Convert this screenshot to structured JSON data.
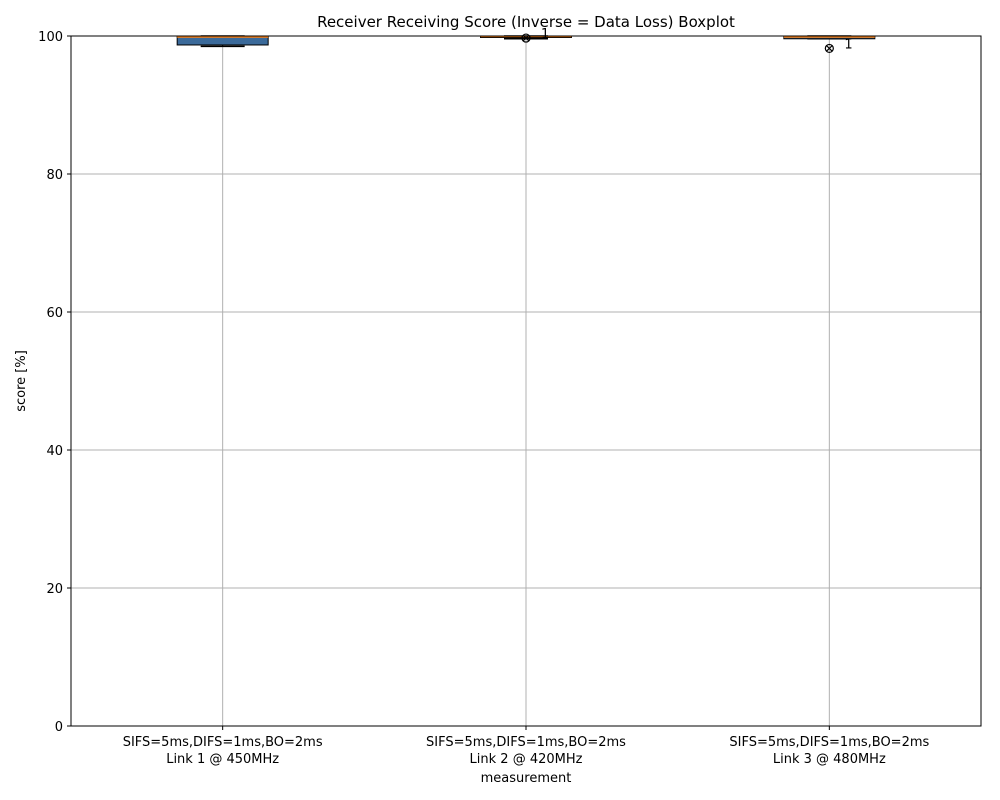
{
  "chart_data": {
    "type": "boxplot",
    "title": "Receiver Receiving Score (Inverse = Data Loss) Boxplot",
    "xlabel": "measurement",
    "ylabel": "score [%]",
    "ylim": [
      0,
      100
    ],
    "yticks": [
      0,
      20,
      40,
      60,
      80,
      100
    ],
    "grid": true,
    "box_color": "#3b6a9a",
    "median_color": "#ff7f0e",
    "categories": [
      {
        "line1": "SIFS=5ms,DIFS=1ms,BO=2ms",
        "line2": "Link 1 @ 450MHz"
      },
      {
        "line1": "SIFS=5ms,DIFS=1ms,BO=2ms",
        "line2": "Link 2 @ 420MHz"
      },
      {
        "line1": "SIFS=5ms,DIFS=1ms,BO=2ms",
        "line2": "Link 3 @ 480MHz"
      }
    ],
    "boxes": [
      {
        "whisker_low": 98.5,
        "q1": 98.7,
        "median": 99.85,
        "q3": 100,
        "whisker_high": 100,
        "outliers": [],
        "outlier_label": ""
      },
      {
        "whisker_low": 99.6,
        "q1": 99.8,
        "median": 99.95,
        "q3": 100,
        "whisker_high": 100,
        "outliers": [
          99.7
        ],
        "outlier_label": "1"
      },
      {
        "whisker_low": 99.6,
        "q1": 99.6,
        "median": 99.85,
        "q3": 100,
        "whisker_high": 100,
        "outliers": [
          98.2
        ],
        "outlier_label": "1"
      }
    ]
  }
}
